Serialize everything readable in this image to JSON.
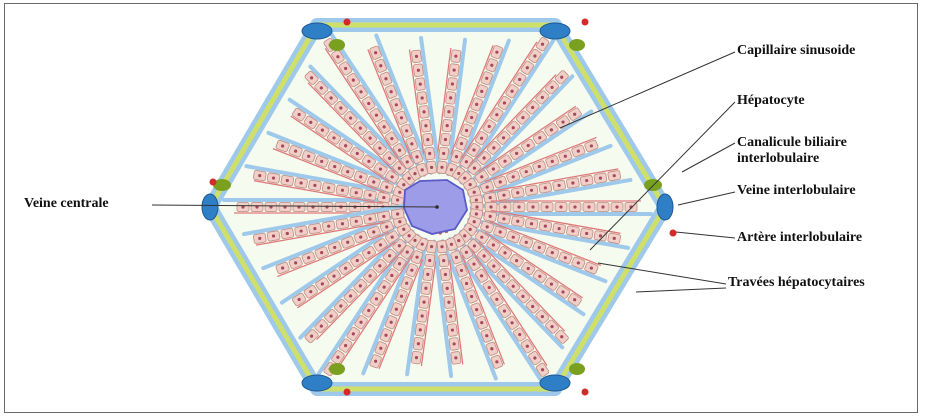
{
  "labels": {
    "capillaire": "Capillaire sinusoide",
    "hepatocyte": "Hépatocyte",
    "canalicule_line1": "Canalicule biliaire",
    "canalicule_line2": "interlobulaire",
    "veine_interlob": "Veine interlobulaire",
    "artere": "Artère interlobulaire",
    "travees": "Travées hépatocytaires",
    "veine_centrale": "Veine centrale"
  },
  "colors": {
    "portal_vein": "#2f7fc6",
    "bile_duct": "#7aa020",
    "artery": "#d42a2a",
    "sinusoid": "#9fc9ea",
    "hepatocyte": "#f0cfc8",
    "hepatocyte_border": "#c08a7e",
    "central_vein": "#9c9ce8",
    "canaliculi": "#cfe06a"
  }
}
